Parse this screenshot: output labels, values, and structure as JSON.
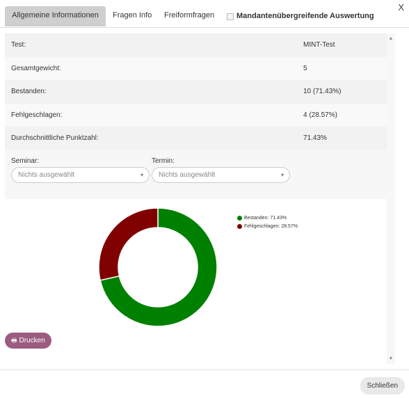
{
  "dialog": {
    "close_glyph": "X"
  },
  "tabs": [
    {
      "label": "Allgemeine Informationen",
      "active": true
    },
    {
      "label": "Fragen Info",
      "active": false
    },
    {
      "label": "Freiformfragen",
      "active": false
    }
  ],
  "cross_tenant": {
    "label": "Mandantenübergreifende Auswertung",
    "checked": false
  },
  "info_rows": [
    {
      "label": "Test:",
      "value": "MINT-Test"
    },
    {
      "label": "Gesamtgewicht:",
      "value": "5"
    },
    {
      "label": "Bestanden:",
      "value": "10 (71.43%)"
    },
    {
      "label": "Fehlgeschlagen:",
      "value": "4 (28.57%)"
    },
    {
      "label": "Durchschnittliche Punktzahl:",
      "value": "71.43%"
    }
  ],
  "filters": {
    "seminar": {
      "label": "Seminar:",
      "value": "Nichts ausgewählt"
    },
    "termin": {
      "label": "Termin:",
      "value": "Nichts ausgewählt"
    }
  },
  "chart_data": {
    "type": "pie",
    "donut": true,
    "series": [
      {
        "name": "Bestanden: 71.43%",
        "value": 71.43,
        "color": "#008000"
      },
      {
        "name": "Fehlgeschlagen: 28.57%",
        "value": 28.57,
        "color": "#800000"
      }
    ],
    "legend_position": "top-right"
  },
  "print_button": {
    "label": "Drucken",
    "icon": "printer-icon"
  },
  "footer": {
    "close_label": "Schließen"
  }
}
